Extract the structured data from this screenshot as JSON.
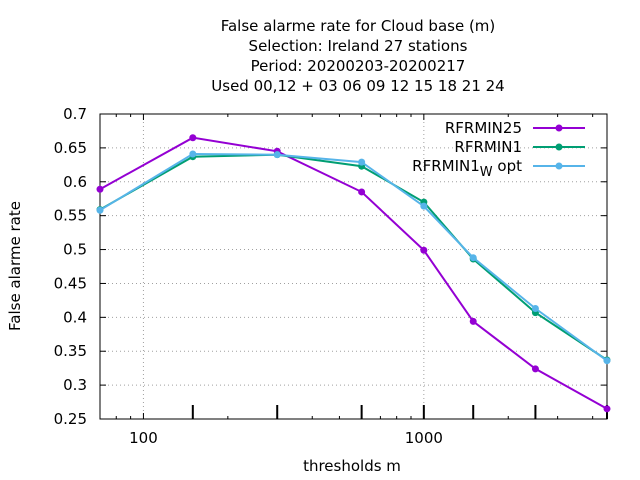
{
  "chart_data": {
    "type": "line",
    "title_lines": [
      "False alarme rate  for Cloud base (m)",
      "Selection: Ireland     27 stations",
      "Period: 20200203-20200217",
      "Used  00,12  + 03 06 09 12 15 18 21 24"
    ],
    "xlabel": "thresholds m",
    "ylabel": "False alarme rate",
    "x_scale": "log",
    "xlim": [
      70,
      4500
    ],
    "ylim": [
      0.25,
      0.7
    ],
    "x_tick_labels": [
      {
        "value": 100,
        "label": "100"
      },
      {
        "value": 1000,
        "label": "1000"
      }
    ],
    "y_ticks": [
      {
        "value": 0.25,
        "label": "0.25"
      },
      {
        "value": 0.3,
        "label": "0.3"
      },
      {
        "value": 0.35,
        "label": "0.35"
      },
      {
        "value": 0.4,
        "label": "0.4"
      },
      {
        "value": 0.45,
        "label": "0.45"
      },
      {
        "value": 0.5,
        "label": "0.5"
      },
      {
        "value": 0.55,
        "label": "0.55"
      },
      {
        "value": 0.6,
        "label": "0.6"
      },
      {
        "value": 0.65,
        "label": "0.65"
      },
      {
        "value": 0.7,
        "label": "0.7"
      }
    ],
    "threshold_ticks": [
      150,
      300,
      600,
      1000,
      1500,
      2500,
      4500
    ],
    "grid": true,
    "legend_position": "top-right",
    "series": [
      {
        "name": "RFRMIN25",
        "color": "#9400d3",
        "x": [
          70,
          150,
          300,
          600,
          1000,
          1500,
          2500,
          4500
        ],
        "y": [
          0.589,
          0.665,
          0.645,
          0.585,
          0.499,
          0.394,
          0.324,
          0.265
        ]
      },
      {
        "name": "RFRMIN1",
        "color": "#009e73",
        "x": [
          70,
          150,
          300,
          600,
          1000,
          1500,
          2500,
          4500
        ],
        "y": [
          0.559,
          0.637,
          0.64,
          0.623,
          0.57,
          0.486,
          0.407,
          0.337
        ]
      },
      {
        "name": "RFRMIN1",
        "name_subscript": "W",
        "name_suffix": "opt",
        "color": "#56b4e9",
        "x": [
          70,
          150,
          300,
          600,
          1000,
          1500,
          2500,
          4500
        ],
        "y": [
          0.558,
          0.641,
          0.64,
          0.629,
          0.564,
          0.488,
          0.413,
          0.336
        ]
      }
    ]
  }
}
